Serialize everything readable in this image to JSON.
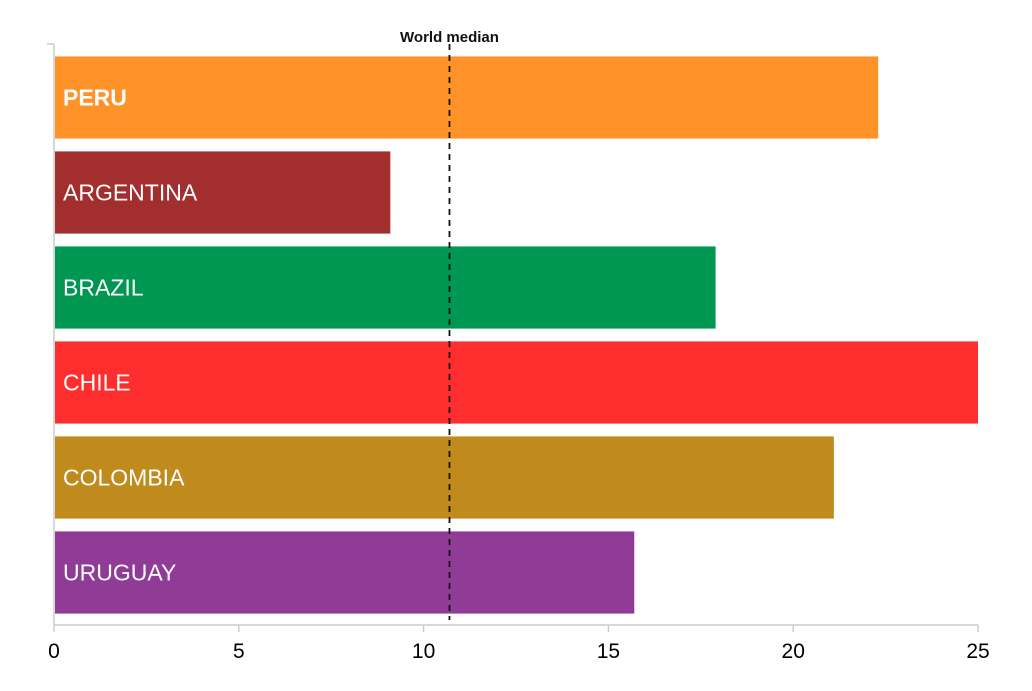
{
  "chart_data": {
    "type": "bar",
    "orientation": "horizontal",
    "title": "",
    "xlabel": "",
    "ylabel": "",
    "xlim": [
      0,
      25
    ],
    "xticks": [
      0,
      5,
      10,
      15,
      20,
      25
    ],
    "grid": false,
    "legend": "none",
    "categories": [
      "PERU",
      "ARGENTINA",
      "BRAZIL",
      "CHILE",
      "COLOMBIA",
      "URUGUAY"
    ],
    "values": [
      22.3,
      9.1,
      17.9,
      25.0,
      21.1,
      15.7
    ],
    "bold_categories": [
      "PERU"
    ],
    "colors": [
      "#ff9228",
      "#a22e2e",
      "#009753",
      "#ff2e2e",
      "#c08a1c",
      "#903b96"
    ],
    "reference_line": {
      "label": "World median",
      "value": 10.7,
      "style": "dashed"
    }
  }
}
